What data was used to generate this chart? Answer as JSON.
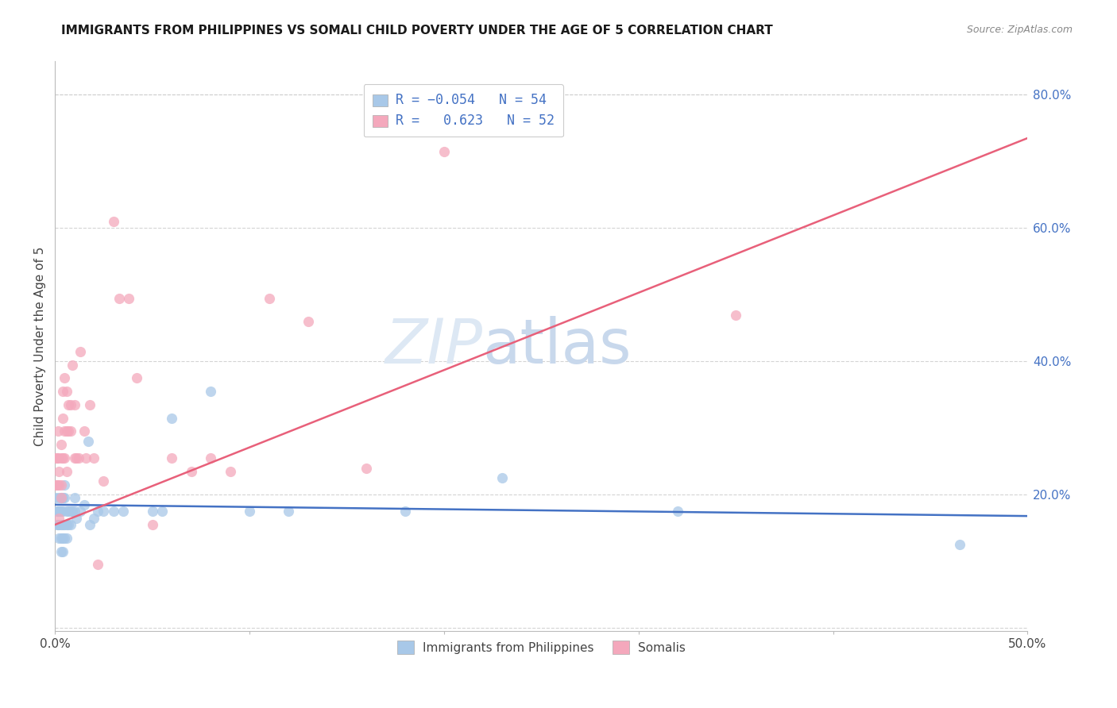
{
  "title": "IMMIGRANTS FROM PHILIPPINES VS SOMALI CHILD POVERTY UNDER THE AGE OF 5 CORRELATION CHART",
  "source": "Source: ZipAtlas.com",
  "ylabel": "Child Poverty Under the Age of 5",
  "right_yticklabels": [
    "",
    "20.0%",
    "40.0%",
    "60.0%",
    "80.0%"
  ],
  "right_ytick_vals": [
    0.0,
    0.2,
    0.4,
    0.6,
    0.8
  ],
  "blue_color": "#a8c8e8",
  "pink_color": "#f4a8bc",
  "blue_line_color": "#4472c4",
  "pink_line_color": "#e8607a",
  "watermark_zip": "ZIP",
  "watermark_atlas": "atlas",
  "xlim": [
    0.0,
    0.5
  ],
  "ylim": [
    -0.005,
    0.85
  ],
  "blue_scatter_x": [
    0.0005,
    0.001,
    0.001,
    0.0015,
    0.0015,
    0.002,
    0.002,
    0.002,
    0.002,
    0.0025,
    0.003,
    0.003,
    0.003,
    0.003,
    0.003,
    0.004,
    0.004,
    0.004,
    0.004,
    0.004,
    0.005,
    0.005,
    0.005,
    0.005,
    0.006,
    0.006,
    0.006,
    0.007,
    0.007,
    0.008,
    0.008,
    0.009,
    0.01,
    0.01,
    0.011,
    0.013,
    0.015,
    0.017,
    0.018,
    0.02,
    0.022,
    0.025,
    0.03,
    0.035,
    0.05,
    0.055,
    0.06,
    0.08,
    0.1,
    0.12,
    0.18,
    0.23,
    0.32,
    0.465
  ],
  "blue_scatter_y": [
    0.195,
    0.175,
    0.155,
    0.175,
    0.155,
    0.195,
    0.175,
    0.155,
    0.135,
    0.175,
    0.195,
    0.175,
    0.155,
    0.135,
    0.115,
    0.195,
    0.175,
    0.155,
    0.135,
    0.115,
    0.215,
    0.195,
    0.155,
    0.135,
    0.175,
    0.155,
    0.135,
    0.175,
    0.155,
    0.175,
    0.155,
    0.175,
    0.195,
    0.175,
    0.165,
    0.175,
    0.185,
    0.28,
    0.155,
    0.165,
    0.175,
    0.175,
    0.175,
    0.175,
    0.175,
    0.175,
    0.315,
    0.355,
    0.175,
    0.175,
    0.175,
    0.225,
    0.175,
    0.125
  ],
  "pink_scatter_x": [
    0.0005,
    0.0005,
    0.001,
    0.001,
    0.0015,
    0.0015,
    0.002,
    0.002,
    0.002,
    0.003,
    0.003,
    0.003,
    0.003,
    0.004,
    0.004,
    0.004,
    0.005,
    0.005,
    0.005,
    0.006,
    0.006,
    0.006,
    0.007,
    0.007,
    0.008,
    0.008,
    0.009,
    0.01,
    0.01,
    0.011,
    0.012,
    0.013,
    0.015,
    0.016,
    0.018,
    0.02,
    0.022,
    0.025,
    0.03,
    0.033,
    0.038,
    0.042,
    0.05,
    0.06,
    0.07,
    0.08,
    0.09,
    0.11,
    0.13,
    0.16,
    0.2,
    0.35
  ],
  "pink_scatter_y": [
    0.255,
    0.215,
    0.255,
    0.215,
    0.295,
    0.255,
    0.235,
    0.215,
    0.165,
    0.275,
    0.255,
    0.215,
    0.195,
    0.355,
    0.315,
    0.255,
    0.375,
    0.295,
    0.255,
    0.355,
    0.295,
    0.235,
    0.335,
    0.295,
    0.335,
    0.295,
    0.395,
    0.335,
    0.255,
    0.255,
    0.255,
    0.415,
    0.295,
    0.255,
    0.335,
    0.255,
    0.095,
    0.22,
    0.61,
    0.495,
    0.495,
    0.375,
    0.155,
    0.255,
    0.235,
    0.255,
    0.235,
    0.495,
    0.46,
    0.24,
    0.715,
    0.47
  ],
  "blue_line_x": [
    0.0,
    0.5
  ],
  "blue_line_y": [
    0.185,
    0.168
  ],
  "pink_line_x": [
    0.0,
    0.5
  ],
  "pink_line_y": [
    0.155,
    0.735
  ],
  "background_color": "#ffffff",
  "grid_color": "#d0d0d0",
  "title_color": "#1a1a1a",
  "marker_size": 90,
  "marker_alpha": 0.75
}
